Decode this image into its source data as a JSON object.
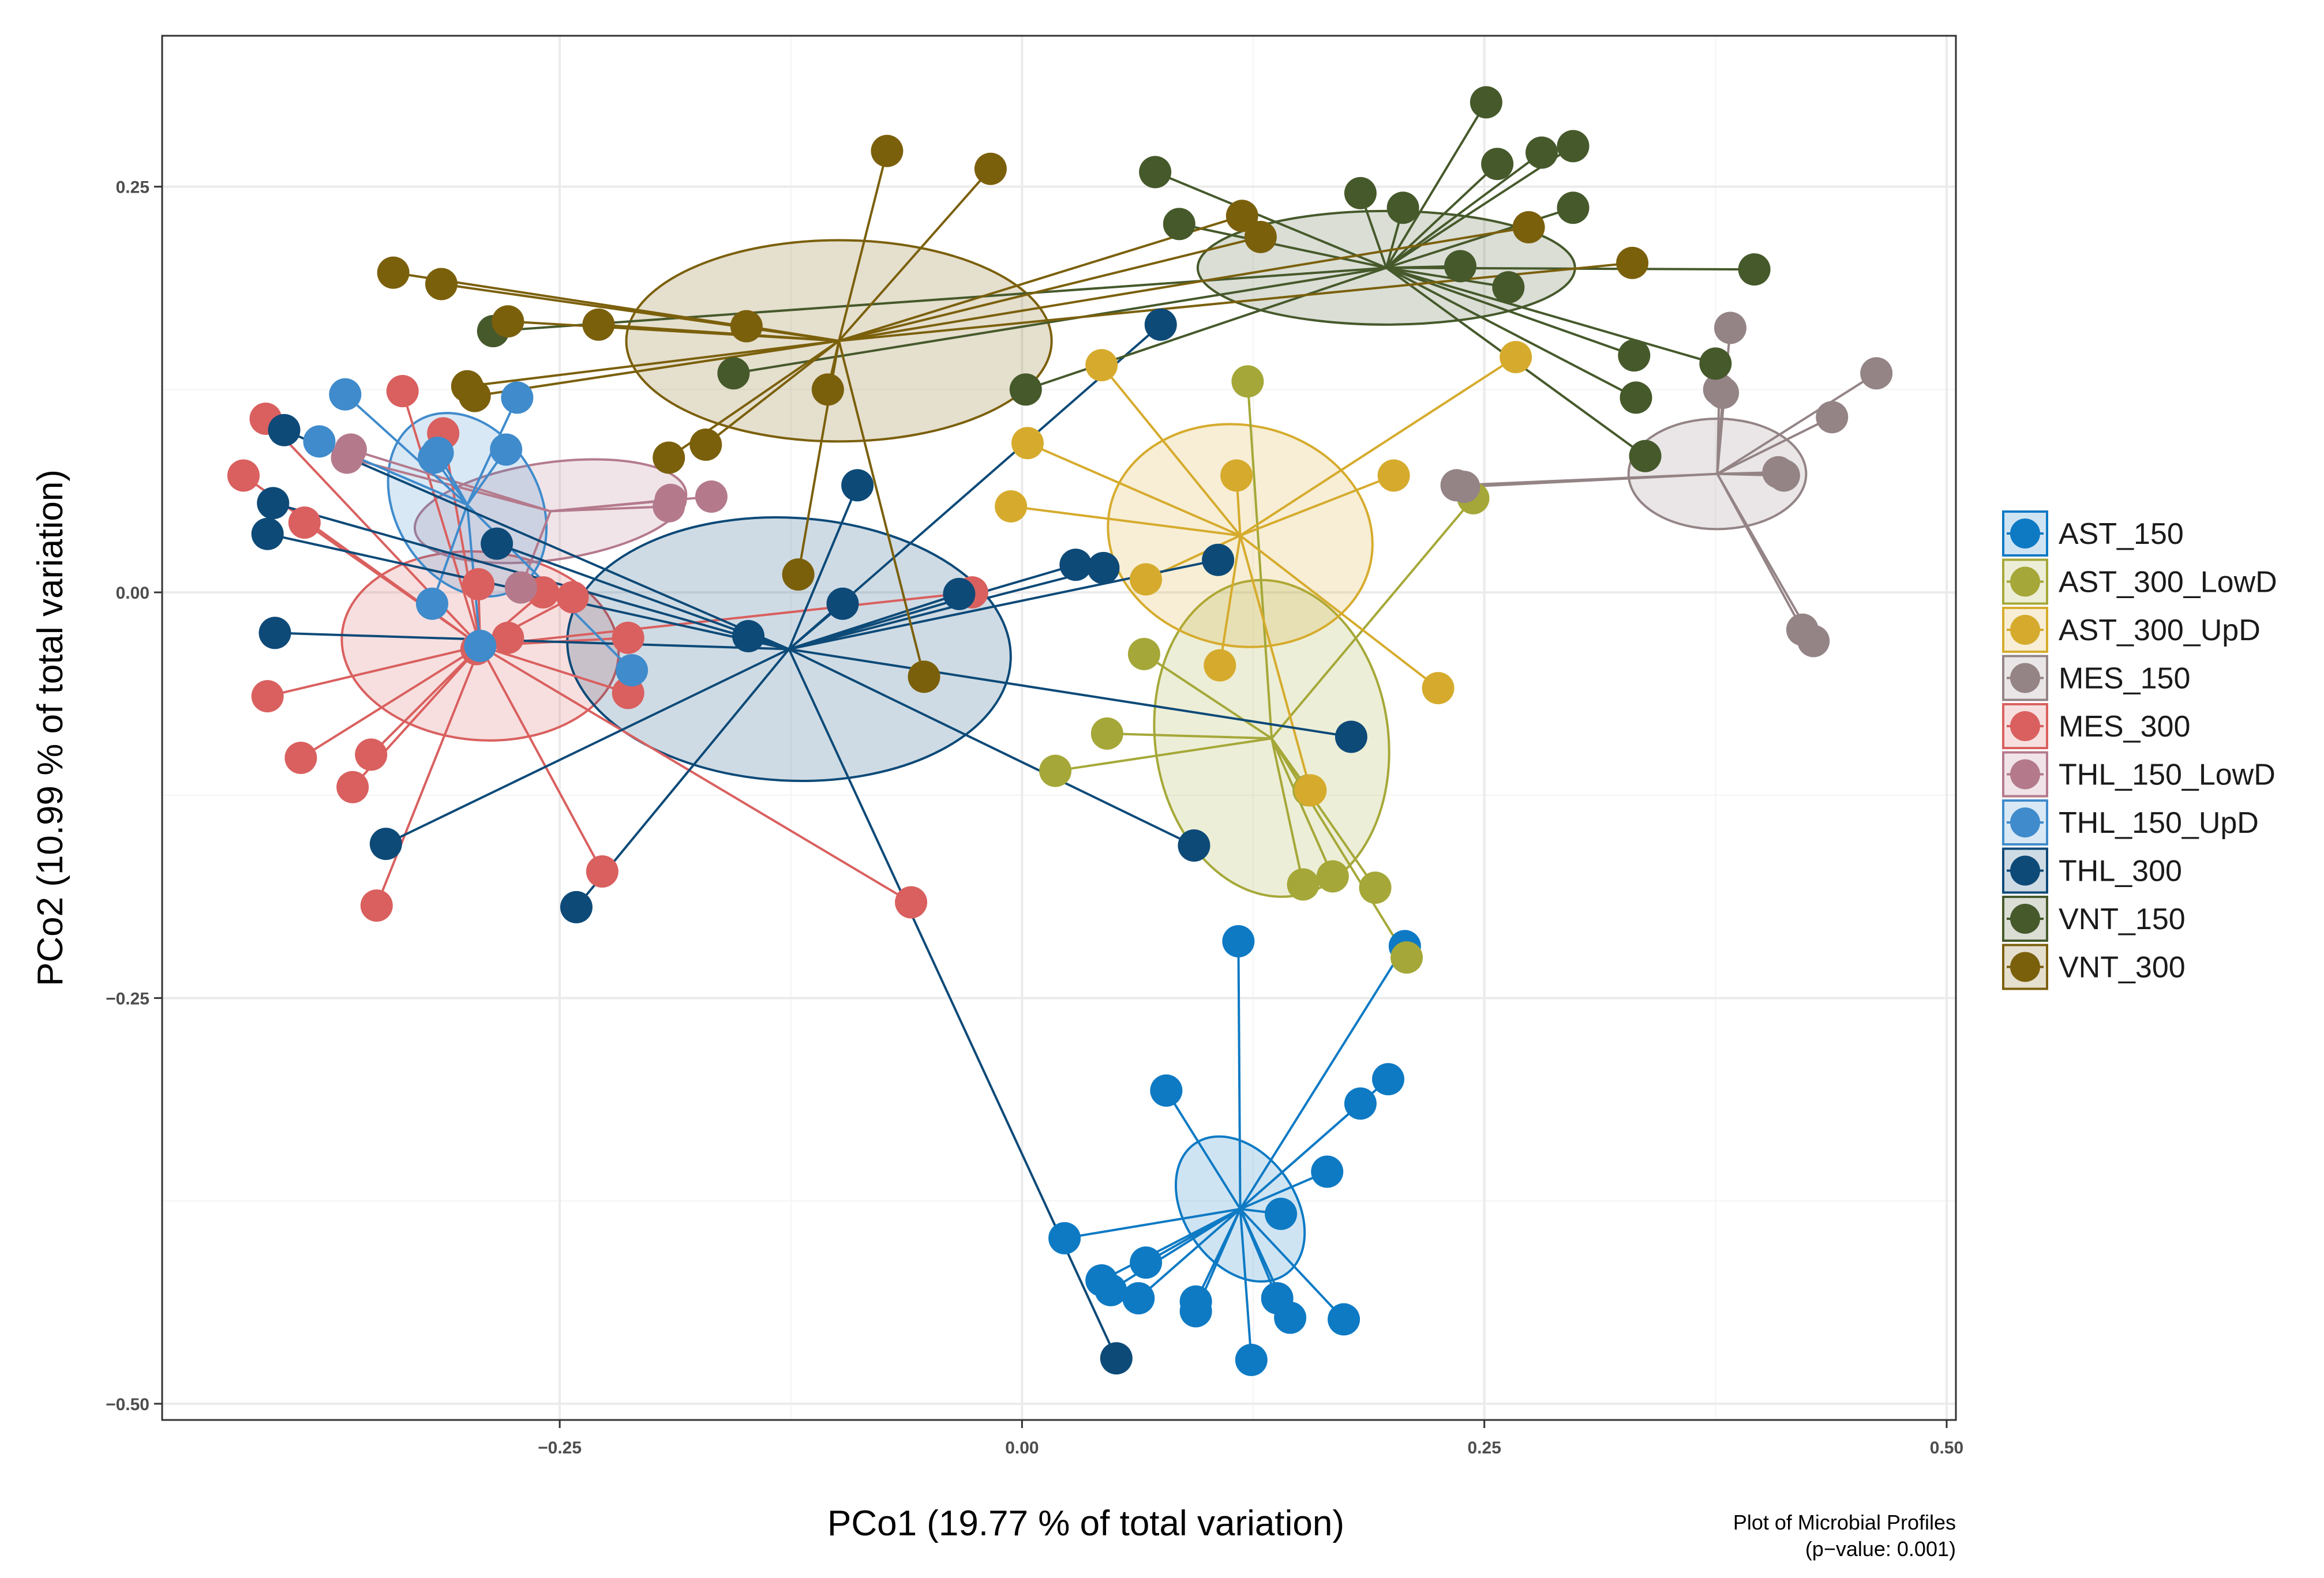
{
  "chart_data": {
    "type": "scatter",
    "subtype": "PCoA ordination with group spiders and ellipses",
    "xlabel": "PCo1 (19.77 % of total variation)",
    "ylabel": "PCo2 (10.99 % of total variation)",
    "caption_line1": "Plot of Microbial Profiles",
    "caption_line2": "(p−value: 0.001)",
    "xlim": [
      -0.465,
      0.505
    ],
    "ylim": [
      -0.51,
      0.343
    ],
    "x_ticks": [
      -0.25,
      0.0,
      0.25,
      0.5
    ],
    "x_tick_labels": [
      "−0.25",
      "0.00",
      "0.25",
      "0.50"
    ],
    "y_ticks": [
      -0.5,
      -0.25,
      0.0,
      0.25
    ],
    "y_tick_labels": [
      "−0.50",
      "−0.25",
      "0.00",
      "0.25"
    ],
    "grid": true,
    "legend_position": "right",
    "series": [
      {
        "name": "AST_150",
        "color": "#0e7ac4",
        "centroid": [
          0.118,
          -0.38
        ],
        "ellipse": {
          "rx": 0.03,
          "ry": 0.049,
          "angle_deg": -35
        },
        "points": [
          [
            0.117,
            -0.215
          ],
          [
            0.207,
            -0.218
          ],
          [
            0.078,
            -0.307
          ],
          [
            0.198,
            -0.3
          ],
          [
            0.183,
            -0.315
          ],
          [
            0.165,
            -0.357
          ],
          [
            0.14,
            -0.383
          ],
          [
            0.023,
            -0.398
          ],
          [
            0.067,
            -0.413
          ],
          [
            0.043,
            -0.424
          ],
          [
            0.048,
            -0.43
          ],
          [
            0.063,
            -0.435
          ],
          [
            0.094,
            -0.437
          ],
          [
            0.094,
            -0.443
          ],
          [
            0.138,
            -0.435
          ],
          [
            0.145,
            -0.447
          ],
          [
            0.174,
            -0.448
          ],
          [
            0.124,
            -0.473
          ]
        ]
      },
      {
        "name": "AST_300_LowD",
        "color": "#a5a838",
        "centroid": [
          0.135,
          -0.09
        ],
        "ellipse": {
          "rx": 0.063,
          "ry": 0.098,
          "angle_deg": -8
        },
        "points": [
          [
            0.122,
            0.13
          ],
          [
            0.244,
            0.058
          ],
          [
            0.066,
            -0.038
          ],
          [
            0.046,
            -0.087
          ],
          [
            0.018,
            -0.11
          ],
          [
            0.155,
            -0.122
          ],
          [
            0.152,
            -0.18
          ],
          [
            0.168,
            -0.175
          ],
          [
            0.191,
            -0.182
          ],
          [
            0.208,
            -0.225
          ]
        ]
      },
      {
        "name": "AST_300_UpD",
        "color": "#d6ab2d",
        "centroid": [
          0.118,
          0.035
        ],
        "ellipse": {
          "rx": 0.072,
          "ry": 0.068,
          "angle_deg": 12
        },
        "points": [
          [
            0.043,
            0.14
          ],
          [
            0.267,
            0.145
          ],
          [
            0.003,
            0.092
          ],
          [
            0.116,
            0.072
          ],
          [
            0.201,
            0.072
          ],
          [
            -0.006,
            0.053
          ],
          [
            0.067,
            0.008
          ],
          [
            0.107,
            -0.045
          ],
          [
            0.225,
            -0.059
          ],
          [
            0.156,
            -0.122
          ]
        ]
      },
      {
        "name": "MES_150",
        "color": "#948486",
        "centroid": [
          0.376,
          0.073
        ],
        "ellipse": {
          "rx": 0.048,
          "ry": 0.034,
          "angle_deg": 0
        },
        "points": [
          [
            0.383,
            0.163
          ],
          [
            0.462,
            0.135
          ],
          [
            0.377,
            0.125
          ],
          [
            0.379,
            0.123
          ],
          [
            0.438,
            0.108
          ],
          [
            0.409,
            0.074
          ],
          [
            0.412,
            0.072
          ],
          [
            0.235,
            0.066
          ],
          [
            0.239,
            0.065
          ],
          [
            0.422,
            -0.023
          ],
          [
            0.428,
            -0.03
          ]
        ]
      },
      {
        "name": "MES_300",
        "color": "#d9605f",
        "centroid": [
          -0.293,
          -0.033
        ],
        "ellipse": {
          "rx": 0.075,
          "ry": 0.058,
          "angle_deg": 5
        },
        "points": [
          [
            -0.409,
            0.107
          ],
          [
            -0.335,
            0.124
          ],
          [
            -0.313,
            0.098
          ],
          [
            -0.421,
            0.072
          ],
          [
            -0.388,
            0.043
          ],
          [
            -0.294,
            0.005
          ],
          [
            -0.259,
            0.0
          ],
          [
            -0.243,
            -0.003
          ],
          [
            -0.213,
            -0.028
          ],
          [
            -0.278,
            -0.028
          ],
          [
            -0.295,
            -0.035
          ],
          [
            -0.213,
            -0.062
          ],
          [
            -0.408,
            -0.064
          ],
          [
            -0.39,
            -0.102
          ],
          [
            -0.352,
            -0.1
          ],
          [
            -0.362,
            -0.12
          ],
          [
            -0.227,
            -0.172
          ],
          [
            -0.349,
            -0.193
          ],
          [
            -0.06,
            -0.191
          ],
          [
            -0.027,
            0.0
          ]
        ]
      },
      {
        "name": "THL_150_LowD",
        "color": "#b47a8c",
        "centroid": [
          -0.255,
          0.05
        ],
        "ellipse": {
          "rx": 0.074,
          "ry": 0.03,
          "angle_deg": -8
        },
        "points": [
          [
            -0.363,
            0.088
          ],
          [
            -0.365,
            0.083
          ],
          [
            -0.19,
            0.057
          ],
          [
            -0.168,
            0.059
          ],
          [
            -0.191,
            0.053
          ],
          [
            -0.271,
            0.003
          ]
        ]
      },
      {
        "name": "THL_150_UpD",
        "color": "#3f8bcc",
        "centroid": [
          -0.3,
          0.054
        ],
        "ellipse": {
          "rx": 0.039,
          "ry": 0.06,
          "angle_deg": -30
        },
        "points": [
          [
            -0.366,
            0.122
          ],
          [
            -0.273,
            0.12
          ],
          [
            -0.38,
            0.093
          ],
          [
            -0.279,
            0.088
          ],
          [
            -0.318,
            0.083
          ],
          [
            -0.316,
            0.086
          ],
          [
            -0.319,
            -0.007
          ],
          [
            -0.293,
            -0.033
          ],
          [
            -0.211,
            -0.048
          ]
        ]
      },
      {
        "name": "THL_300",
        "color": "#0d4a78",
        "centroid": [
          -0.126,
          -0.035
        ],
        "ellipse": {
          "rx": 0.12,
          "ry": 0.081,
          "angle_deg": 3
        },
        "points": [
          [
            0.075,
            0.165
          ],
          [
            -0.399,
            0.1
          ],
          [
            -0.405,
            0.055
          ],
          [
            -0.089,
            0.066
          ],
          [
            -0.408,
            0.036
          ],
          [
            -0.284,
            0.03
          ],
          [
            0.029,
            0.017
          ],
          [
            0.044,
            0.015
          ],
          [
            0.106,
            0.02
          ],
          [
            -0.034,
            -0.001
          ],
          [
            -0.097,
            -0.007
          ],
          [
            -0.148,
            -0.027
          ],
          [
            -0.404,
            -0.025
          ],
          [
            0.178,
            -0.089
          ],
          [
            -0.344,
            -0.155
          ],
          [
            0.093,
            -0.156
          ],
          [
            -0.241,
            -0.194
          ],
          [
            0.051,
            -0.472
          ]
        ]
      },
      {
        "name": "VNT_150",
        "color": "#46592b",
        "centroid": [
          0.197,
          0.2
        ],
        "ellipse": {
          "rx": 0.102,
          "ry": 0.035,
          "angle_deg": 0
        },
        "points": [
          [
            0.251,
            0.302
          ],
          [
            0.298,
            0.275
          ],
          [
            0.281,
            0.271
          ],
          [
            0.257,
            0.264
          ],
          [
            0.072,
            0.259
          ],
          [
            0.183,
            0.246
          ],
          [
            0.206,
            0.237
          ],
          [
            0.298,
            0.237
          ],
          [
            0.085,
            0.227
          ],
          [
            0.237,
            0.201
          ],
          [
            0.396,
            0.199
          ],
          [
            0.263,
            0.188
          ],
          [
            -0.286,
            0.161
          ],
          [
            -0.156,
            0.135
          ],
          [
            0.002,
            0.125
          ],
          [
            0.331,
            0.146
          ],
          [
            0.375,
            0.141
          ],
          [
            0.332,
            0.12
          ],
          [
            0.337,
            0.084
          ]
        ]
      },
      {
        "name": "VNT_300",
        "color": "#7b600c",
        "centroid": [
          -0.099,
          0.155
        ],
        "ellipse": {
          "rx": 0.115,
          "ry": 0.062,
          "angle_deg": 0
        },
        "points": [
          [
            -0.073,
            0.272
          ],
          [
            -0.017,
            0.261
          ],
          [
            0.119,
            0.232
          ],
          [
            0.129,
            0.219
          ],
          [
            0.274,
            0.225
          ],
          [
            0.33,
            0.203
          ],
          [
            -0.34,
            0.197
          ],
          [
            -0.314,
            0.19
          ],
          [
            -0.278,
            0.167
          ],
          [
            -0.229,
            0.165
          ],
          [
            -0.149,
            0.164
          ],
          [
            -0.3,
            0.127
          ],
          [
            -0.296,
            0.121
          ],
          [
            -0.105,
            0.125
          ],
          [
            -0.171,
            0.091
          ],
          [
            -0.191,
            0.083
          ],
          [
            -0.121,
            0.011
          ],
          [
            -0.053,
            -0.052
          ]
        ]
      }
    ]
  }
}
